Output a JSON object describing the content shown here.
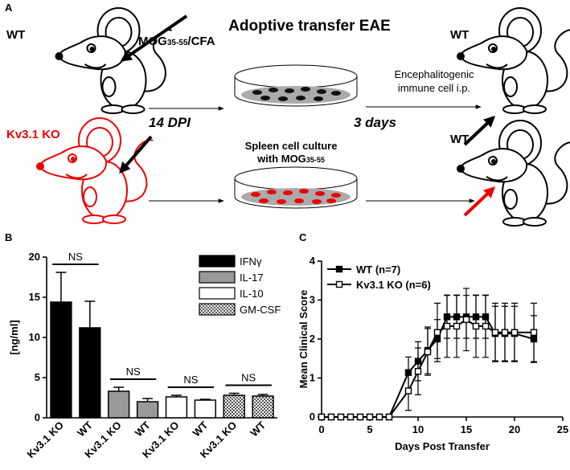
{
  "panel_a": {
    "label": "A",
    "title": "Adoptive transfer EAE",
    "donor_wt": "WT",
    "donor_ko": "Kv3.1 KO",
    "immunization": {
      "main": "MOG",
      "sub": "35-55",
      "tail": "/CFA"
    },
    "time_1": "14 DPI",
    "time_2": "3 days",
    "culture": {
      "line1": "Spleen cell culture",
      "line2": "with MOG",
      "sub": "35-55"
    },
    "transfer": {
      "line1": "Encephalitogenic",
      "line2": "immune cell i.p."
    },
    "recipient_1": "WT",
    "recipient_2": "WT"
  },
  "chart_data": [
    {
      "type": "bar",
      "label": "B",
      "ylabel": "[ng/ml]",
      "categories": [
        "Kv3.1 KO",
        "WT"
      ],
      "series": [
        {
          "name": "IFNγ",
          "color": "#000000",
          "values": [
            14.4,
            11.2
          ],
          "errors": [
            3.7,
            3.3
          ]
        },
        {
          "name": "IL-17",
          "color": "#999999",
          "values": [
            3.3,
            2.0
          ],
          "errors": [
            0.5,
            0.4
          ]
        },
        {
          "name": "IL-10",
          "color": "#ffffff",
          "values": [
            2.6,
            2.2
          ],
          "errors": [
            0.2,
            0.1
          ]
        },
        {
          "name": "GM-CSF",
          "color": "#888888",
          "pattern": "checker",
          "values": [
            2.8,
            2.7
          ],
          "errors": [
            0.25,
            0.2
          ]
        }
      ],
      "annotations": [
        "NS",
        "NS",
        "NS",
        "NS"
      ],
      "ylim": [
        0,
        20
      ],
      "yticks": [
        0,
        5,
        10,
        15,
        20
      ]
    },
    {
      "type": "line",
      "label": "C",
      "xlabel": "Days Post Transfer",
      "ylabel": "Mean Clinical Score",
      "x": [
        0,
        1,
        2,
        3,
        4,
        5,
        6,
        7,
        9,
        10,
        11,
        12,
        13,
        14,
        15,
        16,
        17,
        18,
        19,
        20,
        22
      ],
      "series": [
        {
          "name": "WT (n=7)",
          "color": "#000000",
          "marker_fill": "#000000",
          "values": [
            0,
            0,
            0,
            0,
            0,
            0,
            0,
            0,
            1.14,
            1.43,
            1.71,
            2.0,
            2.57,
            2.57,
            2.57,
            2.57,
            2.57,
            2.14,
            2.14,
            2.14,
            2.0
          ],
          "errors": [
            0,
            0,
            0,
            0,
            0,
            0,
            0,
            0,
            0.4,
            0.5,
            0.6,
            0.5,
            0.55,
            0.55,
            0.55,
            0.55,
            0.55,
            0.7,
            0.7,
            0.7,
            0.6
          ]
        },
        {
          "name": "Kv3.1 KO (n=6)",
          "color": "#000000",
          "marker_fill": "#ffffff",
          "values": [
            0,
            0,
            0,
            0,
            0,
            0,
            0,
            0,
            0.67,
            1.17,
            1.67,
            2.17,
            2.33,
            2.33,
            2.5,
            2.33,
            2.33,
            2.17,
            2.17,
            2.17,
            2.17
          ],
          "errors": [
            0,
            0,
            0,
            0,
            0,
            0,
            0,
            0,
            0.5,
            0.6,
            0.6,
            0.75,
            0.8,
            0.8,
            0.8,
            0.8,
            0.8,
            0.75,
            0.75,
            0.75,
            0.75
          ]
        }
      ],
      "xlim": [
        0,
        25
      ],
      "xticks": [
        0,
        5,
        10,
        15,
        20,
        25
      ],
      "ylim": [
        0,
        4
      ],
      "yticks": [
        0,
        1,
        2,
        3,
        4
      ],
      "legend": "top-left"
    }
  ]
}
